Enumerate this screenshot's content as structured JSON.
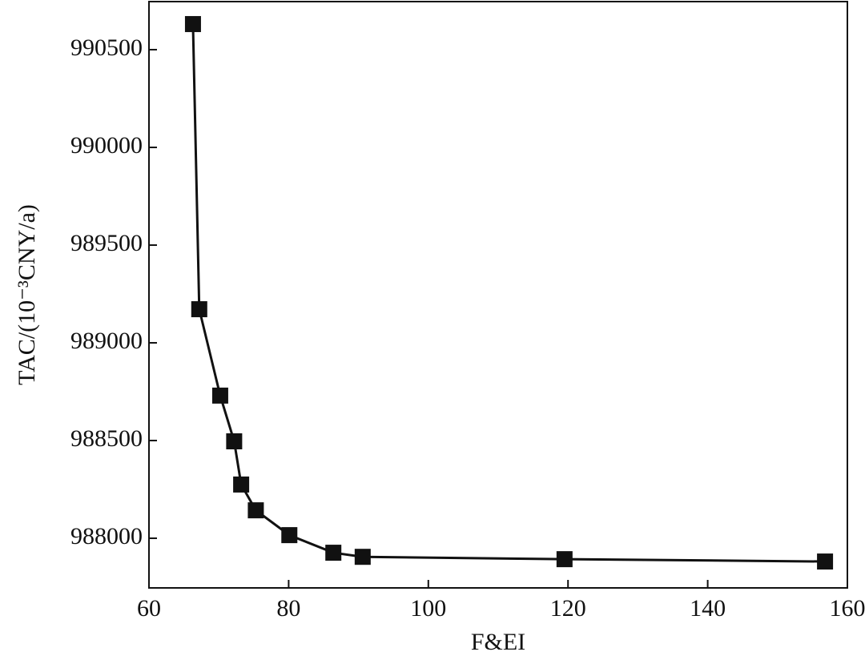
{
  "chart_data": {
    "type": "line",
    "x_label": "F&EI",
    "y_label": "TAC/(10⁻³CNY/a)",
    "x": [
      66.3,
      67.2,
      70.2,
      72.2,
      73.2,
      75.3,
      80.1,
      86.4,
      90.6,
      119.5,
      156.8
    ],
    "series": [
      {
        "color": "#111111",
        "values": [
          990631,
          989172,
          988730,
          988496,
          988275,
          988143,
          988016,
          987926,
          987905,
          987893,
          987881
        ]
      }
    ],
    "xlim": [
      60,
      160
    ],
    "xticks": [
      60,
      80,
      100,
      120,
      140,
      160
    ],
    "ylim": [
      987746,
      990746
    ],
    "yticks": [
      988000,
      988500,
      989000,
      989500,
      990000,
      990500
    ],
    "grid": false
  }
}
